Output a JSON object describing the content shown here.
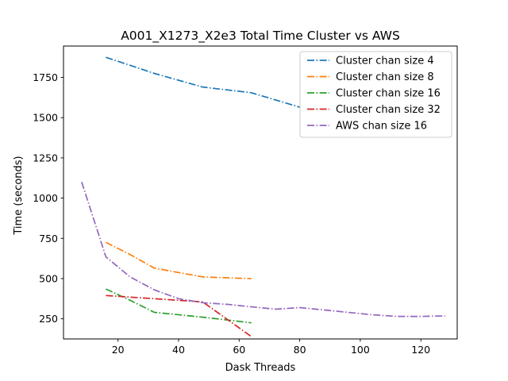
{
  "chart_data": {
    "type": "line",
    "title": "A001_X1273_X2e3 Total Time Cluster vs AWS",
    "xlabel": "Dask Threads",
    "ylabel": "Time (seconds)",
    "xlim": [
      2,
      132
    ],
    "ylim": [
      125,
      1945
    ],
    "xticks": [
      20,
      40,
      60,
      80,
      100,
      120
    ],
    "yticks": [
      250,
      500,
      750,
      1000,
      1250,
      1500,
      1750
    ],
    "grid": false,
    "legend_position": "top-right",
    "series": [
      {
        "name": "Cluster chan size 4",
        "color": "#1f77b4",
        "x": [
          16,
          24,
          32,
          48,
          64,
          80
        ],
        "y": [
          1875,
          1825,
          1775,
          1690,
          1655,
          1565
        ]
      },
      {
        "name": "Cluster chan size 8",
        "color": "#ff7f0e",
        "x": [
          16,
          24,
          32,
          48,
          64
        ],
        "y": [
          725,
          650,
          565,
          510,
          500
        ]
      },
      {
        "name": "Cluster chan size 16",
        "color": "#2ca02c",
        "x": [
          16,
          24,
          32,
          48,
          64
        ],
        "y": [
          435,
          365,
          290,
          260,
          225
        ]
      },
      {
        "name": "Cluster chan size 32",
        "color": "#d62728",
        "x": [
          16,
          24,
          32,
          48,
          64
        ],
        "y": [
          395,
          385,
          375,
          355,
          140
        ]
      },
      {
        "name": "AWS chan size 16",
        "color": "#9467bd",
        "x": [
          8,
          16,
          24,
          32,
          40,
          48,
          56,
          64,
          72,
          80,
          88,
          96,
          104,
          112,
          120,
          128
        ],
        "y": [
          1100,
          635,
          510,
          430,
          375,
          350,
          340,
          325,
          310,
          320,
          305,
          290,
          275,
          265,
          265,
          268
        ]
      }
    ]
  }
}
